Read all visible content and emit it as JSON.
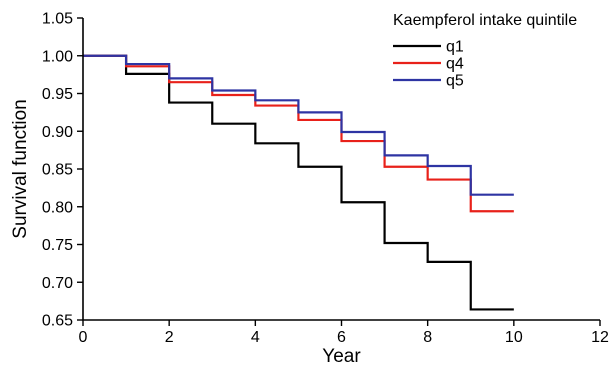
{
  "chart_data": {
    "type": "line",
    "step": true,
    "xlabel": "Year",
    "ylabel": "Survival function",
    "xlim": [
      0,
      12
    ],
    "ylim": [
      0.65,
      1.05
    ],
    "x_ticks": [
      "0",
      "2",
      "4",
      "6",
      "8",
      "10",
      "12"
    ],
    "y_ticks": [
      "0.65",
      "0.70",
      "0.75",
      "0.80",
      "0.85",
      "0.90",
      "0.95",
      "1.00",
      "1.05"
    ],
    "x_tick_values": [
      0,
      2,
      4,
      6,
      8,
      10,
      12
    ],
    "y_tick_values": [
      0.65,
      0.7,
      0.75,
      0.8,
      0.85,
      0.9,
      0.95,
      1.0,
      1.05
    ],
    "legend": {
      "title": "Kaempferol intake quintile",
      "placement": "top-right"
    },
    "series": [
      {
        "name": "q1",
        "color": "#000000",
        "x": [
          0,
          1,
          2,
          3,
          4,
          5,
          6,
          7,
          8,
          9,
          10
        ],
        "values": [
          1.0,
          0.976,
          0.938,
          0.91,
          0.884,
          0.853,
          0.806,
          0.752,
          0.727,
          0.664,
          0.664
        ]
      },
      {
        "name": "q4",
        "color": "#e8211a",
        "x": [
          0,
          1,
          2,
          3,
          4,
          5,
          6,
          7,
          8,
          9,
          10
        ],
        "values": [
          1.0,
          0.986,
          0.965,
          0.948,
          0.934,
          0.915,
          0.887,
          0.853,
          0.836,
          0.794,
          0.794
        ]
      },
      {
        "name": "q5",
        "color": "#2e34a3",
        "x": [
          0,
          1,
          2,
          3,
          4,
          5,
          6,
          7,
          8,
          9,
          10
        ],
        "values": [
          1.0,
          0.989,
          0.97,
          0.954,
          0.941,
          0.925,
          0.899,
          0.868,
          0.854,
          0.816,
          0.816
        ]
      }
    ]
  }
}
